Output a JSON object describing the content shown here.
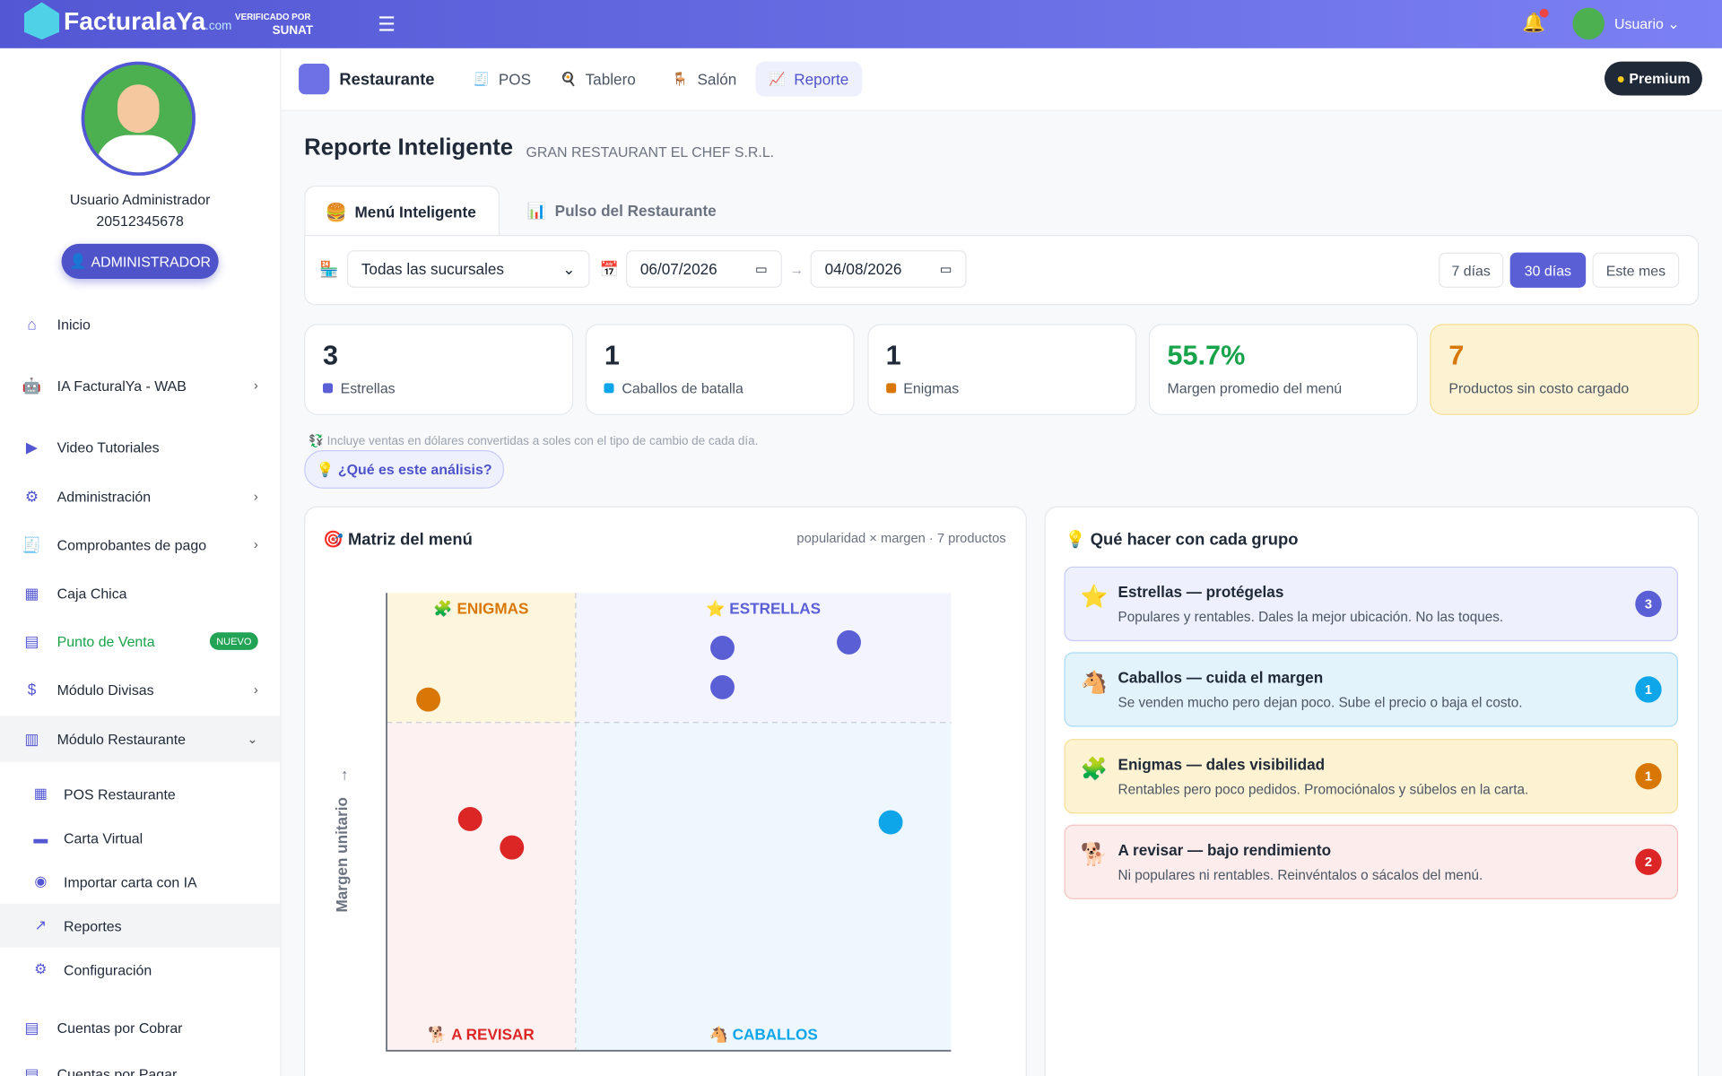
{
  "header": {
    "brand": "FacturalaYa",
    "brand_suffix": ".com",
    "verified": "VERIFICADO POR",
    "sunat": "SUNAT",
    "user": "Usuario"
  },
  "sidebar": {
    "user_name": "Usuario Administrador",
    "ruc": "20512345678",
    "role": "ADMINISTRADOR",
    "menu": [
      {
        "label": "Inicio",
        "expandable": false
      },
      {
        "label": "IA FacturalYa - WAB",
        "expandable": true
      },
      {
        "label": "Video Tutoriales",
        "expandable": false
      },
      {
        "label": "Administración",
        "expandable": true
      },
      {
        "label": "Comprobantes de pago",
        "expandable": true
      },
      {
        "label": "Caja Chica",
        "expandable": false
      },
      {
        "label": "Punto de Venta",
        "expandable": false,
        "badge": "NUEVO"
      },
      {
        "label": "Módulo Divisas",
        "expandable": true
      },
      {
        "label": "Módulo Restaurante",
        "expandable": true
      }
    ],
    "submenu": [
      "POS Restaurante",
      "Carta Virtual",
      "Importar carta con IA",
      "Reportes",
      "Configuración"
    ],
    "menu_after": [
      "Cuentas por Cobrar",
      "Cuentas por Pagar"
    ]
  },
  "tabs": [
    "Restaurante",
    "POS",
    "Tablero",
    "Salón",
    "Reporte"
  ],
  "premium": "Premium",
  "page": {
    "title": "Reporte Inteligente",
    "company": "GRAN RESTAURANT EL CHEF S.R.L."
  },
  "subtabs": [
    "Menú Inteligente",
    "Pulso del Restaurante"
  ],
  "filters": {
    "branch": "Todas las sucursales",
    "date_from": "06/07/2026",
    "date_to": "04/08/2026",
    "ranges": [
      "7 días",
      "30 días",
      "Este mes"
    ]
  },
  "kpis": [
    {
      "value": 3,
      "label": "Estrellas",
      "color": "#5b5fd6"
    },
    {
      "value": 1,
      "label": "Caballos de batalla",
      "color": "#0ea5e9"
    },
    {
      "value": 1,
      "label": "Enigmas",
      "color": "#d97706"
    },
    {
      "value": 55.7,
      "value_label": "55.7%",
      "label": "Margen promedio del menú",
      "color": "#16a34a"
    },
    {
      "value": 7,
      "label": "Productos sin costo cargado",
      "color": "#d97706"
    }
  ],
  "note": "Incluye ventas en dólares convertidas a soles con el tipo de cambio de cada día.",
  "help_button": "¿Qué es este análisis?",
  "matrix": {
    "title": "Matriz del menú",
    "meta": "popularidad × margen · 7 productos",
    "y_label": "Margen unitario",
    "quadrants": [
      "ENIGMAS",
      "ESTRELLAS",
      "A REVISAR",
      "CABALLOS"
    ],
    "xlim": [
      0,
      100
    ],
    "ylim": [
      0,
      100
    ],
    "xsplit": 33.5,
    "ysplit": 71.7,
    "points": [
      {
        "x": 7.4,
        "y": 76.7,
        "color": "#d97706"
      },
      {
        "x": 59.5,
        "y": 88.0,
        "color": "#5b5fd6"
      },
      {
        "x": 81.9,
        "y": 89.2,
        "color": "#5b5fd6"
      },
      {
        "x": 59.5,
        "y": 79.4,
        "color": "#5b5fd6"
      },
      {
        "x": 14.8,
        "y": 50.6,
        "color": "#dc2626"
      },
      {
        "x": 22.2,
        "y": 44.4,
        "color": "#dc2626"
      },
      {
        "x": 89.3,
        "y": 49.9,
        "color": "#0ea5e9"
      }
    ]
  },
  "groups_title": "Qué hacer con cada grupo",
  "groups": [
    {
      "title": "Estrellas — protégelas",
      "desc": "Populares y rentables. Dales la mejor ubicación. No las toques.",
      "count": 3,
      "bg": "#eef0fd",
      "border": "#c7cbf5",
      "color": "#5b5fd6"
    },
    {
      "title": "Caballos — cuida el margen",
      "desc": "Se venden mucho pero dejan poco. Sube el precio o baja el costo.",
      "count": 1,
      "bg": "#e3f3fc",
      "border": "#a9dcf5",
      "color": "#0ea5e9"
    },
    {
      "title": "Enigmas — dales visibilidad",
      "desc": "Rentables pero poco pedidos. Promociónalos y súbelos en la carta.",
      "count": 1,
      "bg": "#fdf3d3",
      "border": "#f5df94",
      "color": "#d97706"
    },
    {
      "title": "A revisar — bajo rendimiento",
      "desc": "Ni populares ni rentables. Reinvéntalos o sácalos del menú.",
      "count": 2,
      "bg": "#fdecec",
      "border": "#f6c2c2",
      "color": "#dc2626"
    }
  ]
}
